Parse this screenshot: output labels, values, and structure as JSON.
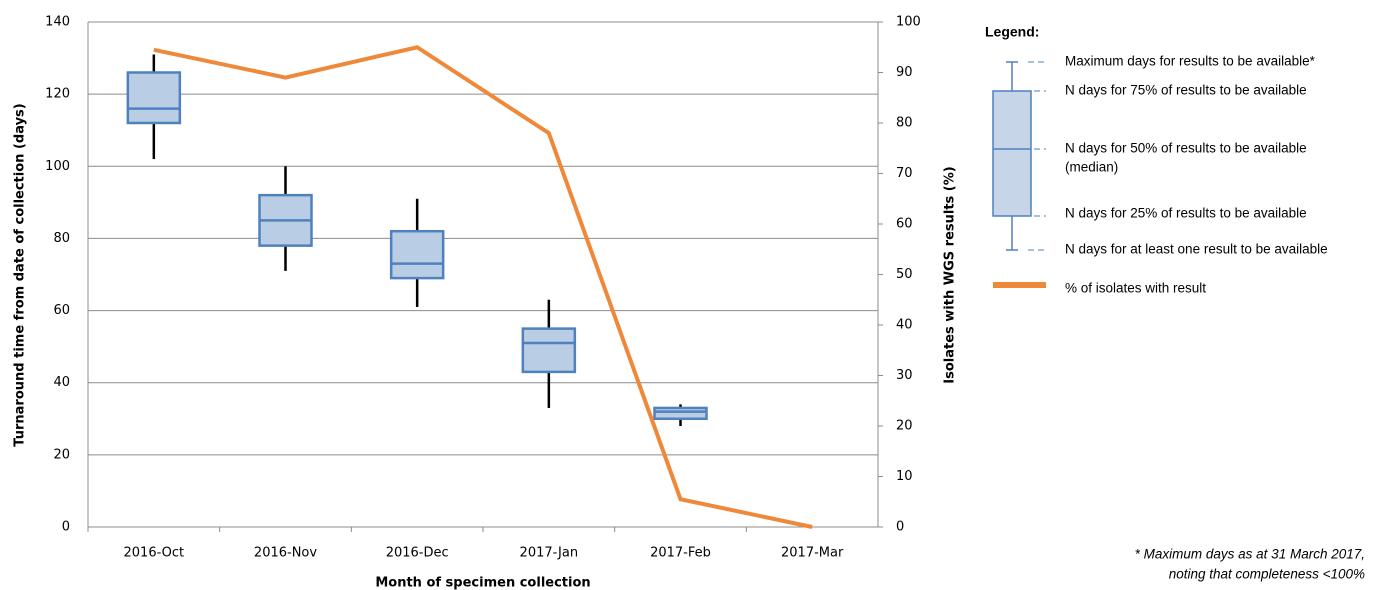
{
  "chart_data": {
    "type": "box",
    "categories": [
      "2016-Oct",
      "2016-Nov",
      "2016-Dec",
      "2017-Jan",
      "2017-Feb",
      "2017-Mar"
    ],
    "boxes": {
      "color": "#4f81bd",
      "fill": "#b9cde5",
      "whisker_color": "#000000",
      "max": [
        131,
        100,
        91,
        63,
        34,
        null
      ],
      "q3": [
        126,
        92,
        82,
        55,
        33,
        null
      ],
      "median": [
        116,
        85,
        73,
        51,
        32,
        null
      ],
      "q1": [
        112,
        78,
        69,
        43,
        30,
        null
      ],
      "min": [
        102,
        71,
        61,
        33,
        28,
        null
      ]
    },
    "series": [
      {
        "name": "% of isolates with result",
        "color": "#f0883a",
        "axis": "y2",
        "values": [
          94.5,
          89,
          95,
          78,
          5.5,
          0
        ]
      }
    ],
    "ylim": [
      0,
      140
    ],
    "yticks": [
      0,
      20,
      40,
      60,
      80,
      100,
      120,
      140
    ],
    "y2lim": [
      0,
      100
    ],
    "y2ticks": [
      0,
      10,
      20,
      30,
      40,
      50,
      60,
      70,
      80,
      90,
      100
    ],
    "grid": true,
    "xlabel": "Month of specimen collection",
    "ylabel": "Turnaround  time from date of collection (days)",
    "y2label": "Isolates with WGS results (%)",
    "legend": {
      "title": "Legend:",
      "box_labels": [
        "Maximum days for results to be available*",
        "N days for 75% of results to be available",
        "N days for 50% of results to be available",
        "(median)",
        "N days for 25% of results to be available",
        "N days for at least one result to be available"
      ]
    },
    "footnote": [
      "* Maximum days as at 31 March 2017,",
      "noting that completeness <100%"
    ]
  }
}
